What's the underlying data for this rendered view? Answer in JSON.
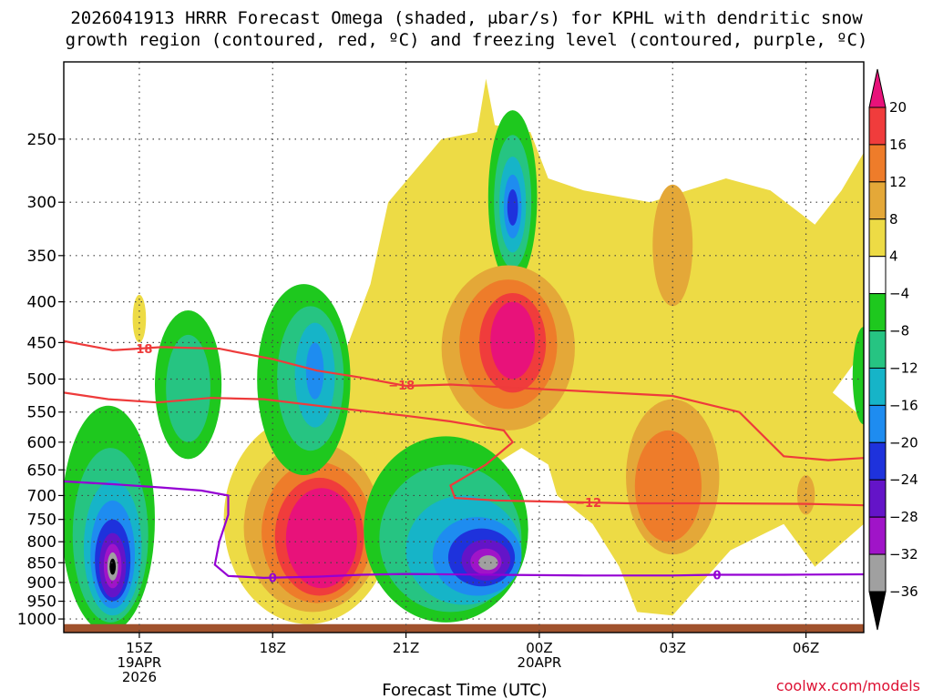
{
  "title": {
    "line1": "2026041913 HRRR Forecast Omega (shaded, μbar/s) for KPHL with dendritic snow",
    "line2": "growth region (contoured, red, ºC) and freezing level (contoured, purple, ºC)"
  },
  "credit": "coolwx.com/models",
  "chart_data": {
    "type": "heatmap",
    "xlabel": "Forecast Time (UTC)",
    "ylabel": "",
    "x_unit": "hours since 2026-04-19 13Z",
    "xlim": [
      0.3,
      18.3
    ],
    "y_unit": "hPa",
    "ylim": [
      1040,
      200
    ],
    "yticks": [
      250,
      300,
      350,
      400,
      450,
      500,
      550,
      600,
      650,
      700,
      750,
      800,
      850,
      900,
      950,
      1000
    ],
    "xticks": [
      {
        "x": 2,
        "lines": [
          "15Z",
          "19APR",
          "2026"
        ]
      },
      {
        "x": 5,
        "lines": [
          "18Z"
        ]
      },
      {
        "x": 8,
        "lines": [
          "21Z"
        ]
      },
      {
        "x": 11,
        "lines": [
          "00Z",
          "20APR"
        ]
      },
      {
        "x": 14,
        "lines": [
          "03Z"
        ]
      },
      {
        "x": 17,
        "lines": [
          "06Z"
        ]
      }
    ],
    "colorbar": {
      "labels": [
        "20",
        "16",
        "12",
        "8",
        "4",
        "−4",
        "−8",
        "−12",
        "−16",
        "−20",
        "−24",
        "−28",
        "−32",
        "−36"
      ],
      "bands": [
        {
          "range": "20+",
          "color": "#e8127a"
        },
        {
          "range": "16 to 20",
          "color": "#f03c3c"
        },
        {
          "range": "12 to 16",
          "color": "#ee7c2a"
        },
        {
          "range": "8 to 12",
          "color": "#e4a838"
        },
        {
          "range": "4 to 8",
          "color": "#eddb45"
        },
        {
          "range": "-4 to 4",
          "color": "#ffffff"
        },
        {
          "range": "-8 to -4",
          "color": "#1ec81e"
        },
        {
          "range": "-12 to -8",
          "color": "#26c482"
        },
        {
          "range": "-16 to -12",
          "color": "#16b4c8"
        },
        {
          "range": "-20 to -16",
          "color": "#1e8cf0"
        },
        {
          "range": "-24 to -20",
          "color": "#1e32dc"
        },
        {
          "range": "-28 to -24",
          "color": "#6414c8"
        },
        {
          "range": "-32 to -28",
          "color": "#a014c8"
        },
        {
          "range": "-36 to -32",
          "color": "#a0a0a0"
        },
        {
          "range": "< -36",
          "color": "#000000"
        }
      ]
    },
    "omega_regions": [
      {
        "name": "upper-ascent",
        "layers": [
          {
            "v": -4,
            "cx": 10.4,
            "cy": 305,
            "rx": 0.55,
            "ry": 75
          },
          {
            "v": -8,
            "cx": 10.4,
            "cy": 305,
            "rx": 0.42,
            "ry": 58
          },
          {
            "v": -12,
            "cx": 10.4,
            "cy": 305,
            "rx": 0.3,
            "ry": 42
          },
          {
            "v": -16,
            "cx": 10.4,
            "cy": 305,
            "rx": 0.2,
            "ry": 28
          },
          {
            "v": -20,
            "cx": 10.4,
            "cy": 305,
            "rx": 0.12,
            "ry": 16
          }
        ]
      },
      {
        "name": "midlevel-descent",
        "layers": [
          {
            "v": 8,
            "cx": 10.3,
            "cy": 470,
            "rx": 1.5,
            "ry": 110
          },
          {
            "v": 12,
            "cx": 10.3,
            "cy": 460,
            "rx": 1.1,
            "ry": 85
          },
          {
            "v": 16,
            "cx": 10.4,
            "cy": 455,
            "rx": 0.75,
            "ry": 65
          },
          {
            "v": 20,
            "cx": 10.4,
            "cy": 450,
            "rx": 0.5,
            "ry": 50
          }
        ]
      },
      {
        "name": "low-descent",
        "layers": [
          {
            "v": 4,
            "cx": 5.8,
            "cy": 785,
            "rx": 1.9,
            "ry": 230
          },
          {
            "v": 8,
            "cx": 5.9,
            "cy": 790,
            "rx": 1.55,
            "ry": 190
          },
          {
            "v": 12,
            "cx": 6.0,
            "cy": 795,
            "rx": 1.25,
            "ry": 160
          },
          {
            "v": 16,
            "cx": 6.05,
            "cy": 800,
            "rx": 1.0,
            "ry": 135
          },
          {
            "v": 20,
            "cx": 6.1,
            "cy": 800,
            "rx": 0.8,
            "ry": 115
          }
        ]
      },
      {
        "name": "surface-ascent-west",
        "layers": [
          {
            "v": -4,
            "cx": 1.3,
            "cy": 790,
            "rx": 1.05,
            "ry": 250
          },
          {
            "v": -8,
            "cx": 1.35,
            "cy": 810,
            "rx": 0.85,
            "ry": 200
          },
          {
            "v": -12,
            "cx": 1.4,
            "cy": 830,
            "rx": 0.65,
            "ry": 160
          },
          {
            "v": -16,
            "cx": 1.4,
            "cy": 840,
            "rx": 0.5,
            "ry": 130
          },
          {
            "v": -20,
            "cx": 1.4,
            "cy": 850,
            "rx": 0.4,
            "ry": 100
          },
          {
            "v": -24,
            "cx": 1.4,
            "cy": 860,
            "rx": 0.3,
            "ry": 80
          },
          {
            "v": -28,
            "cx": 1.4,
            "cy": 860,
            "rx": 0.2,
            "ry": 55
          },
          {
            "v": -32,
            "cx": 1.4,
            "cy": 860,
            "rx": 0.12,
            "ry": 35
          },
          {
            "v": -36,
            "cx": 1.4,
            "cy": 860,
            "rx": 0.07,
            "ry": 20
          }
        ]
      },
      {
        "name": "surface-ascent-center",
        "layers": [
          {
            "v": -4,
            "cx": 8.9,
            "cy": 800,
            "rx": 1.85,
            "ry": 210
          },
          {
            "v": -8,
            "cx": 9.0,
            "cy": 810,
            "rx": 1.6,
            "ry": 170
          },
          {
            "v": -12,
            "cx": 9.3,
            "cy": 830,
            "rx": 1.3,
            "ry": 130
          },
          {
            "v": -16,
            "cx": 9.6,
            "cy": 840,
            "rx": 1.0,
            "ry": 95
          },
          {
            "v": -20,
            "cx": 9.7,
            "cy": 840,
            "rx": 0.75,
            "ry": 70
          },
          {
            "v": -24,
            "cx": 9.8,
            "cy": 845,
            "rx": 0.55,
            "ry": 50
          },
          {
            "v": -28,
            "cx": 9.8,
            "cy": 848,
            "rx": 0.35,
            "ry": 32
          },
          {
            "v": -32,
            "cx": 9.85,
            "cy": 850,
            "rx": 0.22,
            "ry": 18
          }
        ]
      },
      {
        "name": "western-band",
        "layers": [
          {
            "v": -4,
            "cx": 3.1,
            "cy": 520,
            "rx": 0.75,
            "ry": 110
          },
          {
            "v": -8,
            "cx": 3.1,
            "cy": 520,
            "rx": 0.5,
            "ry": 80
          }
        ]
      },
      {
        "name": "ascent-19z",
        "layers": [
          {
            "v": -4,
            "cx": 5.7,
            "cy": 520,
            "rx": 1.05,
            "ry": 140
          },
          {
            "v": -8,
            "cx": 5.85,
            "cy": 510,
            "rx": 0.75,
            "ry": 105
          },
          {
            "v": -12,
            "cx": 5.95,
            "cy": 500,
            "rx": 0.45,
            "ry": 75
          },
          {
            "v": -16,
            "cx": 5.95,
            "cy": 490,
            "rx": 0.2,
            "ry": 40
          }
        ]
      },
      {
        "name": "east-edge-ascent",
        "layers": [
          {
            "v": -4,
            "cx": 18.3,
            "cy": 500,
            "rx": 0.25,
            "ry": 70
          }
        ]
      },
      {
        "name": "lower-descent-east",
        "layers": [
          {
            "v": 8,
            "cx": 14.0,
            "cy": 680,
            "rx": 1.05,
            "ry": 150
          },
          {
            "v": 12,
            "cx": 13.9,
            "cy": 690,
            "rx": 0.75,
            "ry": 110
          }
        ]
      },
      {
        "name": "upper-descent-east",
        "layers": [
          {
            "v": 8,
            "cx": 14.0,
            "cy": 345,
            "rx": 0.45,
            "ry": 60
          }
        ]
      },
      {
        "name": "descent-small",
        "layers": [
          {
            "v": 8,
            "cx": 17.0,
            "cy": 700,
            "rx": 0.2,
            "ry": 40
          }
        ]
      }
    ],
    "contours_temperature": [
      {
        "label": "−18",
        "label_x": 2.0,
        "points": [
          [
            0.3,
            448
          ],
          [
            1.4,
            460
          ],
          [
            2.5,
            456
          ],
          [
            3.8,
            458
          ],
          [
            5.0,
            472
          ],
          [
            6.0,
            488
          ],
          [
            7.0,
            498
          ],
          [
            8.0,
            510
          ],
          [
            9.0,
            508
          ],
          [
            10.5,
            513
          ],
          [
            12.0,
            518
          ],
          [
            14.0,
            525
          ],
          [
            15.5,
            550
          ],
          [
            16.5,
            625
          ],
          [
            17.5,
            632
          ],
          [
            18.3,
            628
          ]
        ]
      },
      {
        "label": "−18",
        "label_x": 7.9,
        "points": []
      },
      {
        "label": "",
        "label_x": null,
        "points": [
          [
            0.3,
            520
          ],
          [
            1.3,
            530
          ],
          [
            2.4,
            535
          ],
          [
            3.6,
            528
          ],
          [
            4.8,
            530
          ],
          [
            6.0,
            540
          ],
          [
            7.0,
            548
          ],
          [
            8.0,
            556
          ],
          [
            9.0,
            565
          ],
          [
            10.2,
            580
          ],
          [
            10.4,
            600
          ],
          [
            9.8,
            640
          ],
          [
            9.0,
            680
          ],
          [
            9.1,
            705
          ],
          [
            10.0,
            710
          ],
          [
            11.0,
            712
          ],
          [
            13.0,
            716
          ],
          [
            15.0,
            716
          ],
          [
            17.0,
            717
          ],
          [
            18.3,
            720
          ]
        ]
      },
      {
        "label": "−12",
        "label_x": 12.1,
        "points": []
      }
    ],
    "contours_freezing": [
      {
        "label": "0",
        "label_x": 5.0,
        "points": [
          [
            0.3,
            672
          ],
          [
            1.5,
            678
          ],
          [
            2.5,
            684
          ],
          [
            3.4,
            690
          ],
          [
            4.0,
            700
          ],
          [
            4.0,
            740
          ],
          [
            3.8,
            800
          ],
          [
            3.7,
            855
          ],
          [
            4.0,
            883
          ],
          [
            4.8,
            888
          ],
          [
            6.0,
            885
          ],
          [
            7.0,
            880
          ],
          [
            8.0,
            878
          ],
          [
            10.0,
            880
          ],
          [
            12.0,
            882
          ],
          [
            14.0,
            882
          ],
          [
            15.0,
            880
          ],
          [
            16.5,
            880
          ],
          [
            18.3,
            879
          ]
        ]
      },
      {
        "label": "0",
        "label_x": 15.0,
        "points": []
      }
    ],
    "ground": {
      "from_hPa": 1015,
      "to_hPa": 1040,
      "color": "#a0522d"
    }
  }
}
